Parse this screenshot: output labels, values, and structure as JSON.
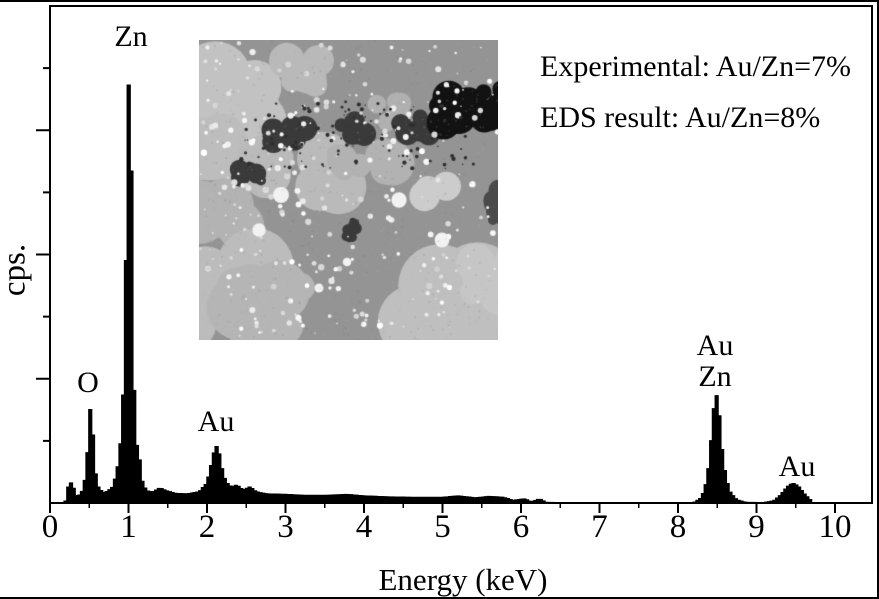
{
  "chart_data": {
    "type": "area",
    "title": "",
    "xlabel": "Energy (keV)",
    "ylabel": "cps.",
    "xlim": [
      0,
      10.47
    ],
    "ylim_pct": [
      0,
      100
    ],
    "x_major_ticks": [
      0,
      1,
      2,
      3,
      4,
      5,
      6,
      7,
      8,
      9,
      10
    ],
    "x_minor_step": 0.5,
    "y_axis_labels_shown": false,
    "y_divisions": 8,
    "grid": false,
    "legend": "none",
    "series_color": "#000000",
    "background_color": "#ffffff",
    "spectrum_keV_intensityPct": [
      [
        0.18,
        0
      ],
      [
        0.21,
        0.6
      ],
      [
        0.24,
        4.0
      ],
      [
        0.29,
        4.0
      ],
      [
        0.32,
        1.4
      ],
      [
        0.38,
        1.6
      ],
      [
        0.42,
        2.6
      ],
      [
        0.46,
        6.0
      ],
      [
        0.49,
        13.0
      ],
      [
        0.52,
        20.7
      ],
      [
        0.55,
        13.0
      ],
      [
        0.58,
        6.0
      ],
      [
        0.62,
        3.0
      ],
      [
        0.68,
        2.0
      ],
      [
        0.74,
        2.4
      ],
      [
        0.8,
        3.2
      ],
      [
        0.85,
        6.0
      ],
      [
        0.89,
        10.0
      ],
      [
        0.93,
        20.0
      ],
      [
        0.96,
        40.0
      ],
      [
        0.99,
        75.0
      ],
      [
        1.01,
        89.5
      ],
      [
        1.03,
        78.0
      ],
      [
        1.05,
        48.0
      ],
      [
        1.07,
        24.0
      ],
      [
        1.09,
        13.0
      ],
      [
        1.12,
        10.5
      ],
      [
        1.15,
        8.0
      ],
      [
        1.18,
        4.0
      ],
      [
        1.23,
        2.4
      ],
      [
        1.31,
        2.2
      ],
      [
        1.4,
        3.0
      ],
      [
        1.49,
        2.4
      ],
      [
        1.6,
        1.9
      ],
      [
        1.74,
        1.8
      ],
      [
        1.9,
        2.2
      ],
      [
        2.0,
        4.0
      ],
      [
        2.06,
        8.0
      ],
      [
        2.11,
        11.7
      ],
      [
        2.15,
        10.5
      ],
      [
        2.19,
        7.0
      ],
      [
        2.24,
        4.2
      ],
      [
        2.31,
        3.2
      ],
      [
        2.38,
        3.6
      ],
      [
        2.46,
        2.6
      ],
      [
        2.55,
        3.2
      ],
      [
        2.63,
        2.2
      ],
      [
        2.76,
        1.8
      ],
      [
        3.0,
        1.7
      ],
      [
        3.25,
        1.5
      ],
      [
        3.52,
        1.5
      ],
      [
        3.78,
        1.7
      ],
      [
        4.0,
        1.4
      ],
      [
        4.3,
        1.2
      ],
      [
        4.65,
        1.1
      ],
      [
        5.0,
        1.1
      ],
      [
        5.2,
        1.4
      ],
      [
        5.42,
        1.0
      ],
      [
        5.6,
        1.3
      ],
      [
        5.78,
        1.1
      ],
      [
        5.9,
        0.5
      ],
      [
        6.05,
        0.8
      ],
      [
        6.13,
        0.2
      ],
      [
        6.24,
        0.8
      ],
      [
        6.32,
        0.1
      ],
      [
        6.5,
        0.05
      ],
      [
        7.0,
        0.05
      ],
      [
        8.2,
        0.05
      ],
      [
        8.28,
        0.8
      ],
      [
        8.34,
        2.5
      ],
      [
        8.4,
        8.0
      ],
      [
        8.44,
        16.0
      ],
      [
        8.48,
        22.7
      ],
      [
        8.52,
        19.0
      ],
      [
        8.56,
        11.0
      ],
      [
        8.61,
        5.0
      ],
      [
        8.67,
        2.0
      ],
      [
        8.75,
        0.6
      ],
      [
        8.86,
        0.1
      ],
      [
        9.1,
        0.05
      ],
      [
        9.22,
        0.4
      ],
      [
        9.31,
        1.6
      ],
      [
        9.39,
        3.2
      ],
      [
        9.46,
        4.0
      ],
      [
        9.53,
        3.4
      ],
      [
        9.61,
        1.8
      ],
      [
        9.68,
        0.7
      ],
      [
        9.72,
        0
      ]
    ],
    "peaks": [
      {
        "element": "O",
        "label": "O",
        "keV": 0.52,
        "intensity_pct": 20.7
      },
      {
        "element": "Zn",
        "label": "Zn",
        "keV": 1.01,
        "intensity_pct": 89.5
      },
      {
        "element": "Au",
        "label": "Au",
        "keV": 2.11,
        "intensity_pct": 11.7
      },
      {
        "element": "Au+Zn",
        "label_lines": [
          "Au",
          "Zn"
        ],
        "keV": 8.48,
        "intensity_pct": 22.7
      },
      {
        "element": "Au",
        "label": "Au",
        "keV": 9.46,
        "intensity_pct": 4.0
      }
    ],
    "annotations": [
      "Experimental: Au/Zn=7%",
      "EDS result: Au/Zn=8%"
    ]
  },
  "inset": {
    "description": "grayscale SEM micrograph inset showing Au nanoparticle speckles on ZnO grains",
    "palette": {
      "base_gray": "#949494",
      "light_grain": "#c2c2c2",
      "bright_speckle": "#f2f2f2",
      "dark_patch": "#3a3a3a",
      "darkest_void": "#121212"
    }
  }
}
